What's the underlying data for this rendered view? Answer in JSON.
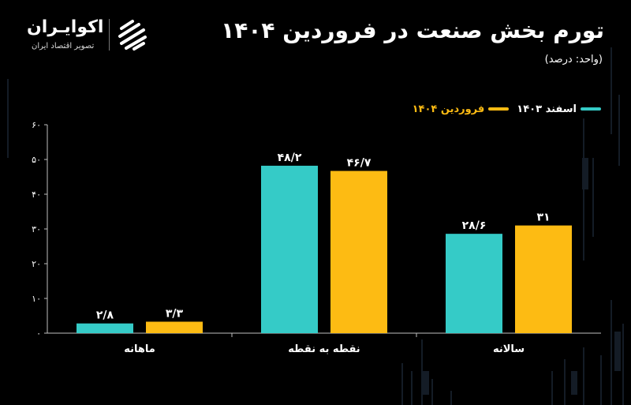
{
  "header": {
    "title": "تورم بخش صنعت در فروردین ۱۴۰۴",
    "subtitle": "(واحد: درصد)"
  },
  "logo": {
    "name": "اکوایـران",
    "tagline": "تصویر اقتصاد ایران"
  },
  "colors": {
    "series1": "#35cbc7",
    "series2": "#fdbb13",
    "background": "#000000",
    "text": "#ffffff",
    "axis": "#bfbfbf"
  },
  "chart_data": {
    "type": "bar",
    "categories": [
      "ماهانه",
      "نقطه به نقطه",
      "سالانه"
    ],
    "series": [
      {
        "name": "اسفند ۱۴۰۳",
        "values": [
          2.8,
          48.2,
          28.6
        ],
        "labels": [
          "۲/۸",
          "۴۸/۲",
          "۲۸/۶"
        ]
      },
      {
        "name": "فروردین ۱۴۰۴",
        "values": [
          3.3,
          46.7,
          31
        ],
        "labels": [
          "۳/۳",
          "۴۶/۷",
          "۳۱"
        ]
      }
    ],
    "yticks": [
      0,
      10,
      20,
      30,
      40,
      50,
      60
    ],
    "ytick_labels": [
      "۰",
      "۱۰",
      "۲۰",
      "۳۰",
      "۴۰",
      "۵۰",
      "۶۰"
    ],
    "ylim": [
      0,
      60
    ],
    "legend_position": "top-right",
    "grid": false
  }
}
